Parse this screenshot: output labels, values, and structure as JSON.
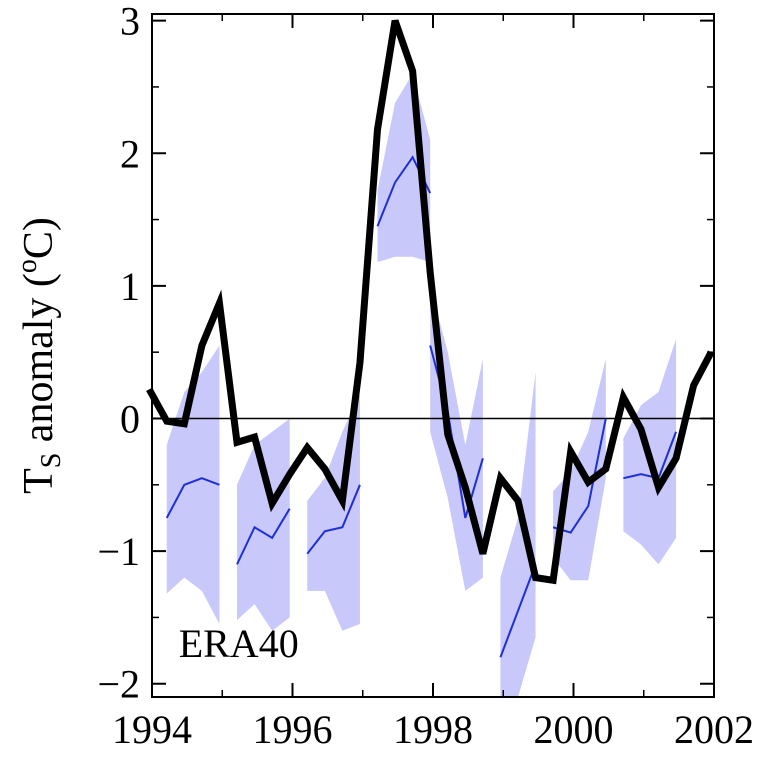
{
  "chart_data": {
    "type": "line",
    "title": "",
    "xlabel": "",
    "ylabel": {
      "base": "T",
      "sub": "S",
      "rest_before_sup": " anomaly (",
      "sup": "o",
      "rest_after_sup": "C)"
    },
    "xlim": [
      1994,
      2002
    ],
    "ylim": [
      -2.1,
      3.05
    ],
    "xticks": [
      1994,
      1996,
      1998,
      2000,
      2002
    ],
    "xtick_labels": [
      "1994",
      "1996",
      "1998",
      "2000",
      "2002"
    ],
    "yticks": [
      -2,
      -1,
      0,
      1,
      2,
      3
    ],
    "ytick_labels": [
      "−2",
      "−1",
      "0",
      "1",
      "2",
      "3"
    ],
    "zero_line": true,
    "grid": false,
    "annotation": "ERA40",
    "colors": {
      "observed": "#000000",
      "ensemble_mean": "#1f2fd6",
      "ensemble_spread": "#c8c8fa",
      "zero_line": "#000000"
    },
    "series": [
      {
        "x": [
          1993.96,
          1994.21,
          1994.46,
          1994.71,
          1994.96,
          1995.21,
          1995.46,
          1995.71,
          1995.96,
          1996.21,
          1996.46,
          1996.71,
          1996.96,
          1997.21,
          1997.46,
          1997.71,
          1997.96,
          1998.21,
          1998.46,
          1998.71,
          1998.96,
          1999.21,
          1999.46,
          1999.71,
          1999.96,
          2000.21,
          2000.46,
          2000.71,
          2000.96,
          2001.21,
          2001.46,
          2001.71,
          2001.96
        ],
        "values": [
          0.22,
          -0.02,
          -0.04,
          0.55,
          0.87,
          -0.18,
          -0.14,
          -0.64,
          -0.42,
          -0.22,
          -0.38,
          -0.62,
          0.42,
          2.18,
          3.0,
          2.62,
          1.1,
          -0.12,
          -0.52,
          -1.02,
          -0.45,
          -0.62,
          -1.2,
          -1.22,
          -0.25,
          -0.48,
          -0.38,
          0.16,
          -0.08,
          -0.52,
          -0.3,
          0.25,
          0.5
        ]
      }
    ],
    "ensemble": [
      {
        "x": [
          1994.21,
          1994.46,
          1994.71,
          1994.96
        ],
        "mean": [
          -0.75,
          -0.5,
          -0.45,
          -0.5
        ],
        "upper": [
          -0.2,
          0.2,
          0.35,
          0.55
        ],
        "lower": [
          -1.32,
          -1.2,
          -1.3,
          -1.55
        ]
      },
      {
        "x": [
          1995.21,
          1995.46,
          1995.71,
          1995.96
        ],
        "mean": [
          -1.1,
          -0.82,
          -0.9,
          -0.68
        ],
        "upper": [
          -0.5,
          -0.2,
          -0.1,
          0.0
        ],
        "lower": [
          -1.52,
          -1.4,
          -1.6,
          -1.5
        ]
      },
      {
        "x": [
          1996.21,
          1996.46,
          1996.71,
          1996.96
        ],
        "mean": [
          -1.02,
          -0.85,
          -0.82,
          -0.5
        ],
        "upper": [
          -0.62,
          -0.45,
          -0.1,
          0.18
        ],
        "lower": [
          -1.3,
          -1.3,
          -1.6,
          -1.55
        ]
      },
      {
        "x": [
          1997.21,
          1997.46,
          1997.71,
          1997.96
        ],
        "mean": [
          1.45,
          1.78,
          1.97,
          1.7
        ],
        "upper": [
          1.72,
          2.38,
          2.6,
          2.1
        ],
        "lower": [
          1.18,
          1.22,
          1.22,
          1.18
        ]
      },
      {
        "x": [
          1997.96,
          1998.21,
          1998.46,
          1998.71
        ],
        "mean": [
          0.55,
          0.05,
          -0.75,
          -0.3
        ],
        "upper": [
          1.0,
          0.5,
          -0.2,
          0.45
        ],
        "lower": [
          -0.1,
          -0.6,
          -1.3,
          -1.2
        ]
      },
      {
        "x": [
          1998.96,
          1999.21,
          1999.46
        ],
        "mean": [
          -1.8,
          -1.45,
          -1.1
        ],
        "upper": [
          -1.2,
          -0.75,
          0.35
        ],
        "lower": [
          -2.1,
          -2.1,
          -1.65
        ]
      },
      {
        "x": [
          1999.71,
          1999.96,
          2000.21,
          2000.46
        ],
        "mean": [
          -0.82,
          -0.86,
          -0.66,
          0.0
        ],
        "upper": [
          -0.55,
          -0.4,
          -0.1,
          0.45
        ],
        "lower": [
          -1.05,
          -1.22,
          -1.22,
          -0.45
        ]
      },
      {
        "x": [
          2000.71,
          2000.96,
          2001.21,
          2001.46
        ],
        "mean": [
          -0.45,
          -0.42,
          -0.45,
          -0.1
        ],
        "upper": [
          -0.15,
          0.1,
          0.2,
          0.6
        ],
        "lower": [
          -0.85,
          -0.95,
          -1.1,
          -0.9
        ]
      }
    ]
  }
}
